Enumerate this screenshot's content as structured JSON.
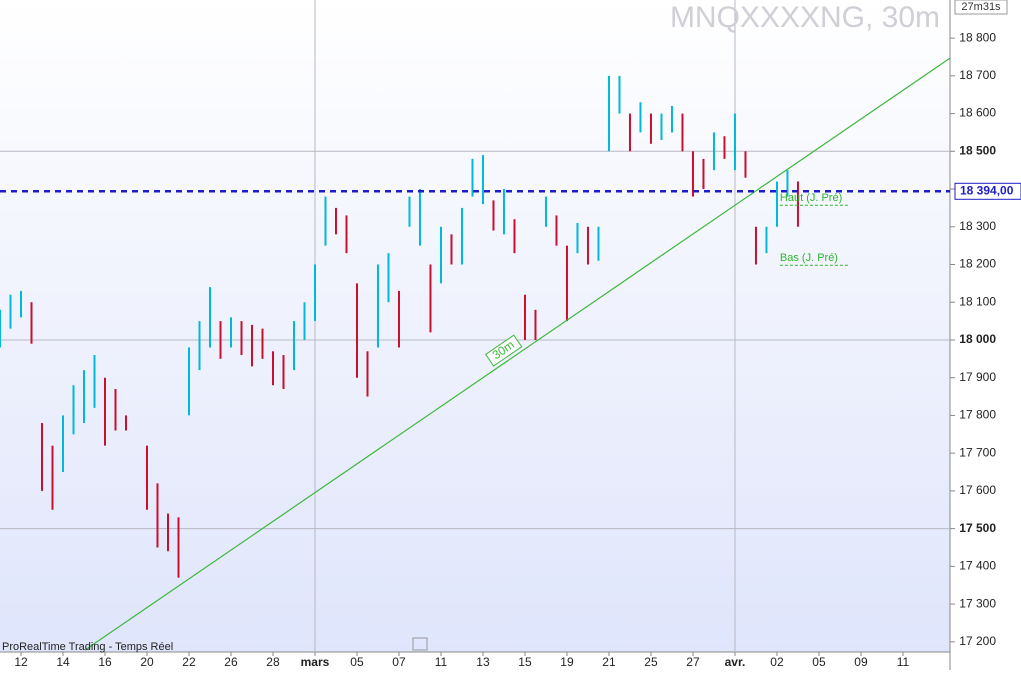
{
  "chart_data": {
    "type": "ohlc",
    "title": "MNQXXXXNG, 30m",
    "timer": "27m31s",
    "source": "ProRealTime Trading - Temps Réel",
    "x": [
      -0.5,
      -0.25,
      0,
      0.25,
      0.5,
      0.75,
      1,
      1.25,
      1.5,
      1.75,
      2,
      2.25,
      2.5,
      3,
      3.25,
      3.5,
      3.75,
      4,
      4.25,
      4.5,
      4.75,
      5,
      5.25,
      5.5,
      5.75,
      6,
      6.25,
      6.5,
      6.75,
      7,
      7.25,
      7.5,
      7.75,
      8,
      8.25,
      8.5,
      8.75,
      9,
      9.25,
      9.5,
      9.75,
      10,
      10.25,
      10.5,
      10.75,
      11,
      11.25,
      11.5,
      11.75,
      12,
      12.25,
      12.5,
      12.75,
      13,
      13.25,
      13.5,
      13.75,
      14,
      14.25,
      14.5,
      14.75,
      15,
      15.25,
      15.5,
      15.75,
      16,
      16.25,
      16.5,
      16.75,
      17,
      17.25,
      17.5,
      17.75,
      18,
      18.25,
      18.5
    ],
    "high": [
      18080,
      18120,
      18130,
      18100,
      17780,
      17720,
      17800,
      17880,
      17920,
      17960,
      17900,
      17870,
      17800,
      17720,
      17620,
      17540,
      17530,
      17980,
      18050,
      18140,
      18050,
      18060,
      18050,
      18040,
      18030,
      17970,
      17960,
      18050,
      18100,
      18200,
      18380,
      18350,
      18330,
      18150,
      17970,
      18200,
      18230,
      18130,
      18380,
      18400,
      18200,
      18300,
      18280,
      18350,
      18480,
      18490,
      18370,
      18400,
      18320,
      18120,
      18080,
      18380,
      18330,
      18250,
      18310,
      18300,
      18300,
      18700,
      18700,
      18600,
      18630,
      18600,
      18600,
      18620,
      18600,
      18500,
      18480,
      18550,
      18540,
      18600,
      18500,
      18300,
      18300,
      18420,
      18450,
      18420
    ],
    "low": [
      17980,
      18030,
      18060,
      17990,
      17600,
      17550,
      17650,
      17750,
      17780,
      17820,
      17720,
      17760,
      17760,
      17550,
      17450,
      17440,
      17370,
      17800,
      17920,
      17980,
      17950,
      17980,
      17960,
      17930,
      17950,
      17880,
      17870,
      17920,
      18000,
      18050,
      18250,
      18280,
      18230,
      17900,
      17850,
      17980,
      18100,
      17980,
      18300,
      18250,
      18020,
      18150,
      18200,
      18200,
      18380,
      18360,
      18290,
      18280,
      18230,
      18000,
      18000,
      18300,
      18250,
      18050,
      18230,
      18200,
      18210,
      18500,
      18600,
      18500,
      18550,
      18520,
      18530,
      18550,
      18500,
      18380,
      18400,
      18450,
      18480,
      18450,
      18430,
      18200,
      18230,
      18300,
      18380,
      18300
    ],
    "up_color": "#00b8d8",
    "down_color": "#c8102e",
    "xlim": [
      -0.5,
      22.12
    ],
    "ylim": [
      17173,
      18901
    ],
    "xticks": [
      {
        "value": 0,
        "label": "12"
      },
      {
        "value": 1,
        "label": "14"
      },
      {
        "value": 2,
        "label": "16"
      },
      {
        "value": 3,
        "label": "20"
      },
      {
        "value": 4,
        "label": "22"
      },
      {
        "value": 5,
        "label": "26"
      },
      {
        "value": 6,
        "label": "28"
      },
      {
        "value": 7,
        "label": "mars"
      },
      {
        "value": 8,
        "label": "05"
      },
      {
        "value": 9,
        "label": "07"
      },
      {
        "value": 10,
        "label": "11"
      },
      {
        "value": 11,
        "label": "13"
      },
      {
        "value": 12,
        "label": "15"
      },
      {
        "value": 13,
        "label": "19"
      },
      {
        "value": 14,
        "label": "21"
      },
      {
        "value": 15,
        "label": "25"
      },
      {
        "value": 16,
        "label": "27"
      },
      {
        "value": 17,
        "label": "avr."
      },
      {
        "value": 18,
        "label": "02"
      },
      {
        "value": 19,
        "label": "05"
      },
      {
        "value": 20,
        "label": "09"
      },
      {
        "value": 21,
        "label": "11"
      }
    ],
    "yticks": [
      {
        "value": 18800,
        "label": "18 800"
      },
      {
        "value": 18700,
        "label": "18 700"
      },
      {
        "value": 18600,
        "label": "18 600"
      },
      {
        "value": 18500,
        "label": "18 500"
      },
      {
        "value": 18400,
        "label": "18 400"
      },
      {
        "value": 18300,
        "label": "18 300"
      },
      {
        "value": 18200,
        "label": "18 200"
      },
      {
        "value": 18100,
        "label": "18 100"
      },
      {
        "value": 18000,
        "label": "18 000"
      },
      {
        "value": 17900,
        "label": "17 900"
      },
      {
        "value": 17800,
        "label": "17 800"
      },
      {
        "value": 17700,
        "label": "17 700"
      },
      {
        "value": 17600,
        "label": "17 600"
      },
      {
        "value": 17500,
        "label": "17 500"
      },
      {
        "value": 17400,
        "label": "17 400"
      },
      {
        "value": 17300,
        "label": "17 300"
      },
      {
        "value": 17200,
        "label": "17 200"
      }
    ],
    "major_yticks": [
      18500,
      18000,
      17500
    ],
    "major_xticks": [
      7,
      17
    ],
    "last_price": {
      "value": 18394,
      "label": "18 394,00",
      "color": "#1c1cc8"
    },
    "trendline": {
      "label": "30m",
      "color": "#3cb83c",
      "x": [
        1.52,
        22.12
      ],
      "y": [
        17178,
        18747
      ]
    },
    "levels": [
      {
        "name": "Haut (J. Pré)",
        "value": 18357,
        "x": [
          18.07,
          19.69
        ]
      },
      {
        "name": "Bas (J. Pré)",
        "value": 18198,
        "x": [
          18.07,
          19.69
        ]
      }
    ],
    "level_color": "#2fb52f"
  }
}
